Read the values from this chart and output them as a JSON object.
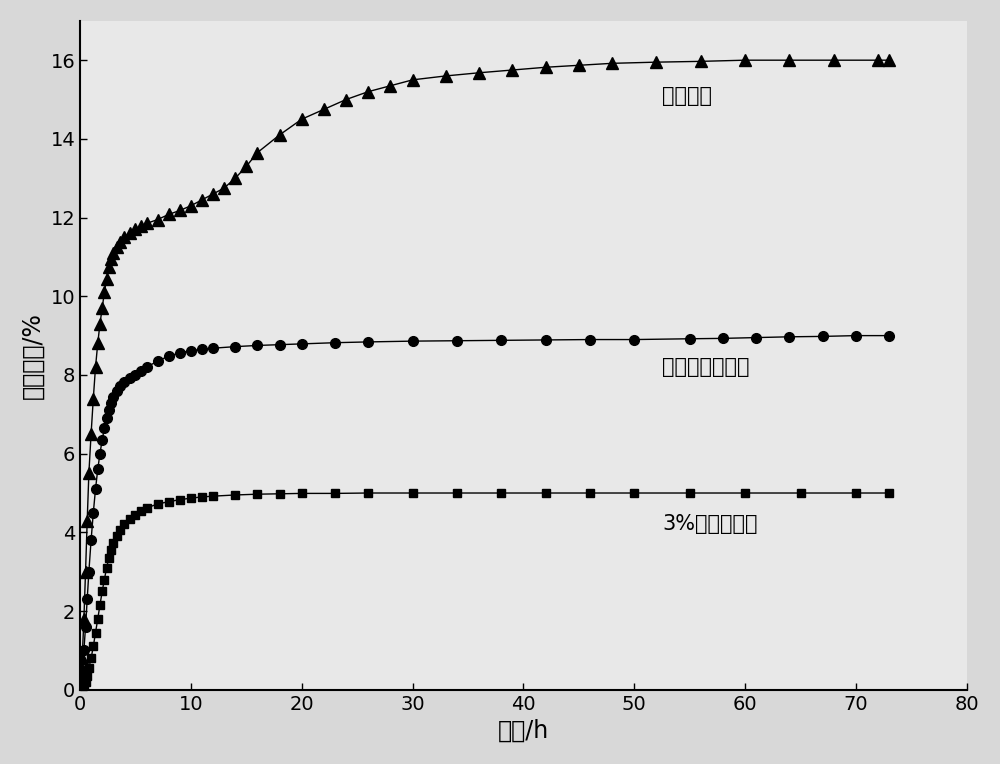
{
  "title": "",
  "xlabel": "时间/h",
  "ylabel": "采出程度/%",
  "xlim": [
    0,
    80
  ],
  "ylim": [
    0,
    17
  ],
  "xticks": [
    0,
    10,
    20,
    30,
    40,
    50,
    60,
    70,
    80
  ],
  "yticks": [
    0,
    2,
    4,
    6,
    8,
    10,
    12,
    14,
    16
  ],
  "bg_color": "#e8e8e8",
  "ax_color": "#e8e8e8",
  "series": [
    {
      "label": "3%氯化钠溶液",
      "color": "#000000",
      "marker": "s",
      "markersize": 6,
      "linewidth": 1.0,
      "x": [
        0.1,
        0.2,
        0.35,
        0.5,
        0.65,
        0.8,
        1.0,
        1.2,
        1.4,
        1.6,
        1.8,
        2.0,
        2.2,
        2.4,
        2.6,
        2.8,
        3.0,
        3.3,
        3.6,
        4.0,
        4.5,
        5.0,
        5.5,
        6.0,
        7.0,
        8.0,
        9.0,
        10.0,
        11.0,
        12.0,
        14.0,
        16.0,
        18.0,
        20.0,
        23.0,
        26.0,
        30.0,
        34.0,
        38.0,
        42.0,
        46.0,
        50.0,
        55.0,
        60.0,
        65.0,
        70.0,
        73.0
      ],
      "y": [
        0.02,
        0.05,
        0.1,
        0.2,
        0.35,
        0.55,
        0.8,
        1.1,
        1.45,
        1.8,
        2.15,
        2.5,
        2.8,
        3.1,
        3.35,
        3.55,
        3.72,
        3.9,
        4.05,
        4.2,
        4.35,
        4.45,
        4.55,
        4.62,
        4.72,
        4.78,
        4.83,
        4.87,
        4.9,
        4.92,
        4.95,
        4.97,
        4.98,
        4.99,
        4.99,
        5.0,
        5.0,
        5.0,
        5.0,
        5.0,
        5.0,
        5.0,
        5.0,
        5.0,
        5.0,
        5.0,
        5.0
      ],
      "annotation": "3%氯化钠溶液",
      "ann_x": 52.5,
      "ann_y": 4.2
    },
    {
      "label": "表面活性剂溶液",
      "color": "#000000",
      "marker": "o",
      "markersize": 7,
      "linewidth": 1.0,
      "x": [
        0.1,
        0.2,
        0.35,
        0.5,
        0.65,
        0.8,
        1.0,
        1.2,
        1.4,
        1.6,
        1.8,
        2.0,
        2.2,
        2.4,
        2.6,
        2.8,
        3.0,
        3.3,
        3.6,
        4.0,
        4.5,
        5.0,
        5.5,
        6.0,
        7.0,
        8.0,
        9.0,
        10.0,
        11.0,
        12.0,
        14.0,
        16.0,
        18.0,
        20.0,
        23.0,
        26.0,
        30.0,
        34.0,
        38.0,
        42.0,
        46.0,
        50.0,
        55.0,
        58.0,
        61.0,
        64.0,
        67.0,
        70.0,
        73.0
      ],
      "y": [
        0.2,
        0.5,
        1.0,
        1.6,
        2.3,
        3.0,
        3.8,
        4.5,
        5.1,
        5.6,
        6.0,
        6.35,
        6.65,
        6.9,
        7.1,
        7.3,
        7.45,
        7.6,
        7.72,
        7.82,
        7.92,
        8.0,
        8.1,
        8.2,
        8.35,
        8.48,
        8.56,
        8.62,
        8.65,
        8.68,
        8.72,
        8.75,
        8.77,
        8.79,
        8.82,
        8.84,
        8.86,
        8.87,
        8.88,
        8.89,
        8.9,
        8.9,
        8.92,
        8.93,
        8.95,
        8.97,
        8.98,
        9.0,
        9.0
      ],
      "annotation": "表面活性剂溶液",
      "ann_x": 52.5,
      "ann_y": 8.2
    },
    {
      "label": "纳米流体",
      "color": "#000000",
      "marker": "^",
      "markersize": 8,
      "linewidth": 1.0,
      "x": [
        0.1,
        0.2,
        0.35,
        0.5,
        0.65,
        0.8,
        1.0,
        1.2,
        1.4,
        1.6,
        1.8,
        2.0,
        2.2,
        2.4,
        2.6,
        2.8,
        3.0,
        3.3,
        3.6,
        4.0,
        4.5,
        5.0,
        5.5,
        6.0,
        7.0,
        8.0,
        9.0,
        10.0,
        11.0,
        12.0,
        13.0,
        14.0,
        15.0,
        16.0,
        18.0,
        20.0,
        22.0,
        24.0,
        26.0,
        28.0,
        30.0,
        33.0,
        36.0,
        39.0,
        42.0,
        45.0,
        48.0,
        52.0,
        56.0,
        60.0,
        64.0,
        68.0,
        72.0,
        73.0
      ],
      "y": [
        0.3,
        0.8,
        1.8,
        3.0,
        4.3,
        5.5,
        6.5,
        7.4,
        8.2,
        8.8,
        9.3,
        9.7,
        10.1,
        10.45,
        10.75,
        10.95,
        11.1,
        11.25,
        11.38,
        11.5,
        11.6,
        11.7,
        11.78,
        11.85,
        11.95,
        12.08,
        12.18,
        12.3,
        12.45,
        12.6,
        12.75,
        13.0,
        13.3,
        13.65,
        14.1,
        14.5,
        14.75,
        15.0,
        15.2,
        15.35,
        15.5,
        15.6,
        15.68,
        15.75,
        15.82,
        15.87,
        15.92,
        15.95,
        15.97,
        16.0,
        16.0,
        16.0,
        16.0,
        16.0
      ],
      "annotation": "纳米流体",
      "ann_x": 52.5,
      "ann_y": 15.1
    }
  ],
  "font_size_label": 17,
  "font_size_tick": 14,
  "font_size_annotation": 15
}
